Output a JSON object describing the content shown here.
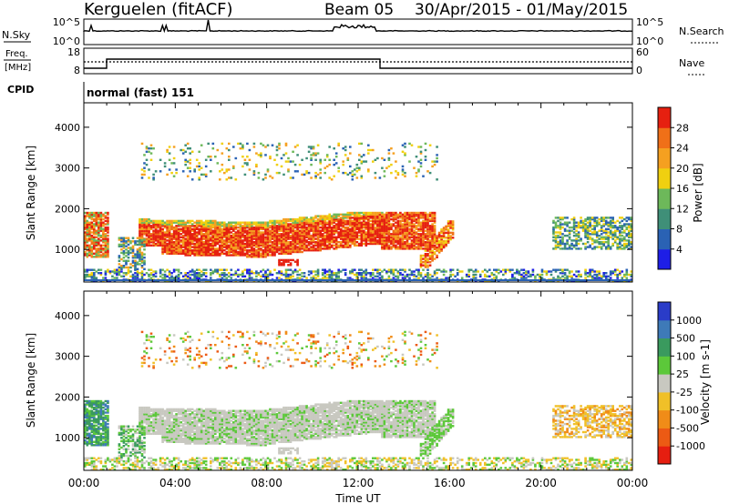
{
  "header": {
    "station": "Kerguelen (fitACF)",
    "beam": "Beam 05",
    "date_range": "30/Apr/2015 - 01/May/2015"
  },
  "nsky_panel": {
    "left_label": "N.Sky",
    "left_ticks": [
      "10^5",
      "10^0"
    ],
    "right_label": "N.Search",
    "right_ticks": [
      "10^5",
      "10^0"
    ]
  },
  "freq_panel": {
    "label_line1": "Freq.",
    "label_line2": "[MHz]",
    "left_ticks": [
      "18",
      "8"
    ],
    "right_label": "Nave",
    "right_ticks": [
      "60",
      "0"
    ],
    "cpid_label": "CPID",
    "mode": "normal (fast) 151"
  },
  "chart_data": [
    {
      "type": "heatmap",
      "name": "power",
      "ylabel": "Slant Range [km]",
      "y_ticks": [
        "1000",
        "2000",
        "3000",
        "4000"
      ],
      "ylim": [
        200,
        4600
      ],
      "colorbar_label": "Power [dB]",
      "colorbar_ticks": [
        "4",
        "8",
        "12",
        "16",
        "20",
        "24",
        "28"
      ],
      "colorbar_colors": [
        "#1e1ee6",
        "#2a62b4",
        "#3f8f78",
        "#6db85a",
        "#f0d010",
        "#f5a020",
        "#f07018",
        "#e62010"
      ]
    },
    {
      "type": "heatmap",
      "name": "velocity",
      "ylabel": "Slant Range [km]",
      "y_ticks": [
        "1000",
        "2000",
        "3000",
        "4000"
      ],
      "ylim": [
        200,
        4600
      ],
      "xlabel": "Time UT",
      "x_ticks": [
        "00:00",
        "04:00",
        "08:00",
        "12:00",
        "16:00",
        "20:00",
        "00:00"
      ],
      "colorbar_label": "Velocity [m s-1]",
      "colorbar_ticks": [
        "1000",
        "500",
        "100",
        "25",
        "-25",
        "-100",
        "-500",
        "-1000"
      ],
      "colorbar_colors": [
        "#2a3cc8",
        "#3e7ab8",
        "#3a9a5e",
        "#5cc83a",
        "#c8c8c0",
        "#f0c028",
        "#f08c18",
        "#ec5a14",
        "#e61e10"
      ]
    }
  ]
}
